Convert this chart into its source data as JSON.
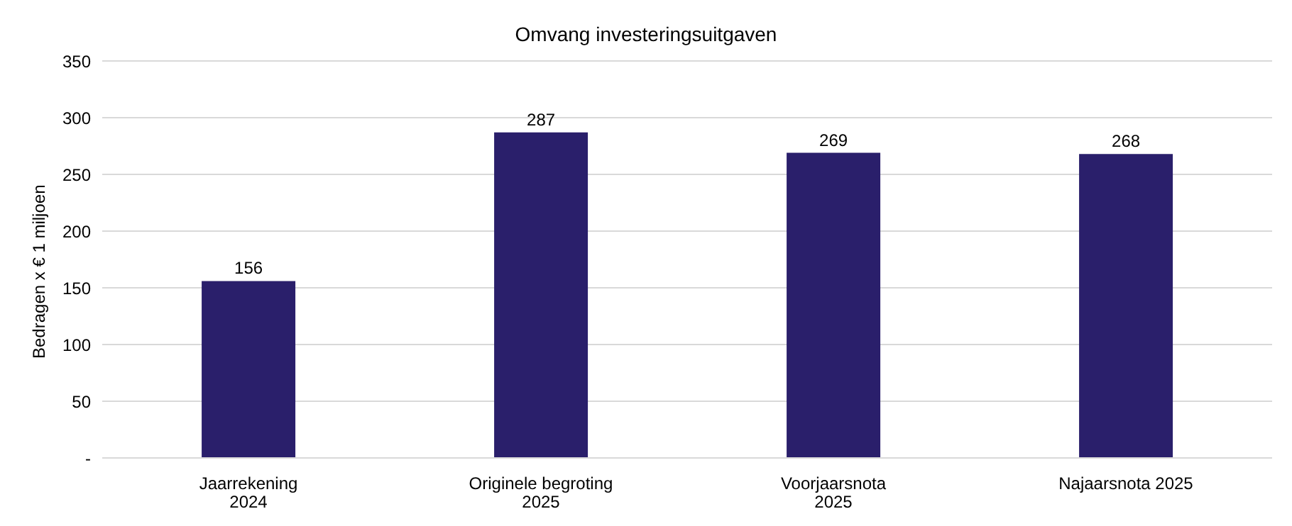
{
  "chart_data": {
    "type": "bar",
    "title": "Omvang investeringsuitgaven",
    "ylabel": "Bedragen  x € 1 miljoen",
    "categories": [
      "Jaarrekening\n2024",
      "Originele begroting\n2025",
      "Voorjaarsnota\n2025",
      "Najaarsnota 2025"
    ],
    "values": [
      156,
      287,
      269,
      268
    ],
    "color": "#2a1f6b",
    "ylim": [
      0,
      350
    ],
    "yticks": [
      {
        "value": 0,
        "label": "-"
      },
      50,
      100,
      150,
      200,
      250,
      300,
      350
    ],
    "grid": "y",
    "data_labels": true,
    "legend": false
  }
}
